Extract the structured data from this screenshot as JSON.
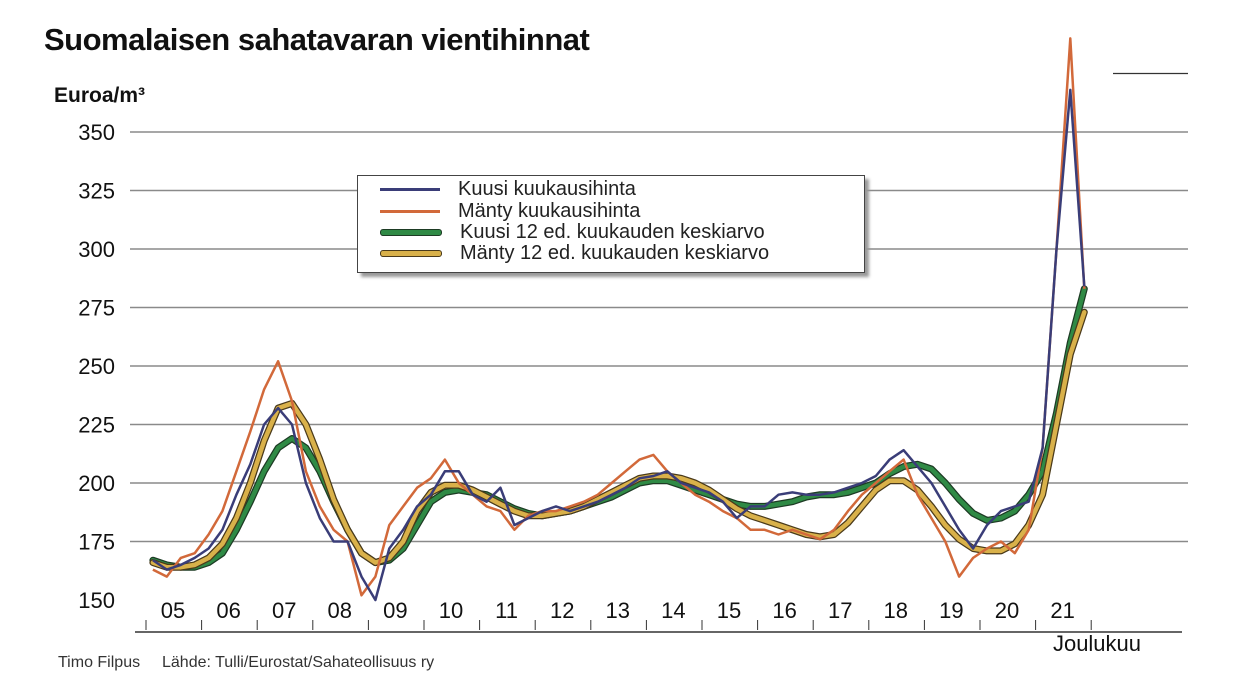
{
  "chart_data": {
    "type": "line",
    "title": "Suomalaisen sahatavaran vientihinnat",
    "ylabel": "Euroa/m³",
    "xlabel": "",
    "ylim": [
      150,
      375
    ],
    "yticks": [
      150,
      175,
      200,
      225,
      250,
      275,
      300,
      325,
      350
    ],
    "x_tick_labels": [
      "05",
      "06",
      "07",
      "08",
      "09",
      "10",
      "11",
      "12",
      "13",
      "14",
      "15",
      "16",
      "17",
      "18",
      "19",
      "20",
      "21"
    ],
    "x_end_label": "Joulukuu",
    "x_resolution": "quarterly, 2005Q1–2021Q4 (approximate)",
    "grid": true,
    "legend_position": "top-center",
    "series": [
      {
        "name": "Kuusi kuukausihinta",
        "color": "#3a3d78",
        "values": [
          167,
          163,
          165,
          168,
          172,
          180,
          195,
          208,
          225,
          232,
          225,
          200,
          185,
          175,
          175,
          160,
          150,
          172,
          180,
          190,
          195,
          205,
          205,
          195,
          192,
          198,
          182,
          185,
          188,
          190,
          188,
          190,
          192,
          195,
          198,
          202,
          203,
          205,
          200,
          198,
          196,
          192,
          185,
          190,
          190,
          195,
          196,
          195,
          195,
          196,
          198,
          200,
          203,
          210,
          214,
          207,
          200,
          190,
          180,
          172,
          182,
          188,
          190,
          192,
          215,
          300,
          368,
          284
        ]
      },
      {
        "name": "Mänty kuukausihinta",
        "color": "#d2693a",
        "values": [
          163,
          160,
          168,
          170,
          178,
          188,
          205,
          222,
          240,
          252,
          235,
          205,
          190,
          180,
          175,
          152,
          160,
          182,
          190,
          198,
          202,
          210,
          200,
          195,
          190,
          188,
          180,
          186,
          188,
          188,
          190,
          192,
          195,
          200,
          205,
          210,
          212,
          205,
          200,
          195,
          192,
          188,
          185,
          180,
          180,
          178,
          180,
          178,
          176,
          180,
          188,
          195,
          200,
          205,
          210,
          195,
          185,
          175,
          160,
          168,
          172,
          175,
          170,
          180,
          215,
          300,
          390,
          283
        ]
      },
      {
        "name": "Kuusi 12 ed. kuukauden keskiarvo",
        "color": "#2f8a45",
        "values": [
          167,
          165,
          164,
          164,
          166,
          170,
          180,
          192,
          205,
          215,
          219,
          215,
          205,
          192,
          180,
          170,
          166,
          167,
          172,
          182,
          192,
          196,
          197,
          196,
          195,
          192,
          189,
          187,
          186,
          187,
          188,
          190,
          192,
          194,
          197,
          200,
          201,
          201,
          199,
          197,
          195,
          193,
          191,
          190,
          190,
          191,
          192,
          194,
          195,
          195,
          196,
          198,
          200,
          204,
          207,
          208,
          206,
          200,
          193,
          187,
          184,
          185,
          188,
          195,
          205,
          230,
          260,
          283
        ]
      },
      {
        "name": "Mänty 12 ed. kuukauden keskiarvo",
        "color": "#d9b14a",
        "values": [
          166,
          164,
          164,
          165,
          168,
          174,
          185,
          200,
          218,
          232,
          234,
          225,
          210,
          193,
          180,
          170,
          166,
          168,
          175,
          188,
          196,
          199,
          199,
          197,
          194,
          191,
          188,
          186,
          186,
          187,
          188,
          190,
          193,
          196,
          199,
          202,
          203,
          203,
          202,
          200,
          197,
          193,
          189,
          186,
          184,
          182,
          180,
          178,
          177,
          178,
          183,
          190,
          197,
          201,
          201,
          197,
          190,
          182,
          176,
          172,
          171,
          171,
          174,
          182,
          195,
          225,
          255,
          273
        ]
      }
    ]
  },
  "footer": {
    "author": "Timo Filpus",
    "source": "Lähde: Tulli/Eurostat/Sahateollisuus ry"
  }
}
